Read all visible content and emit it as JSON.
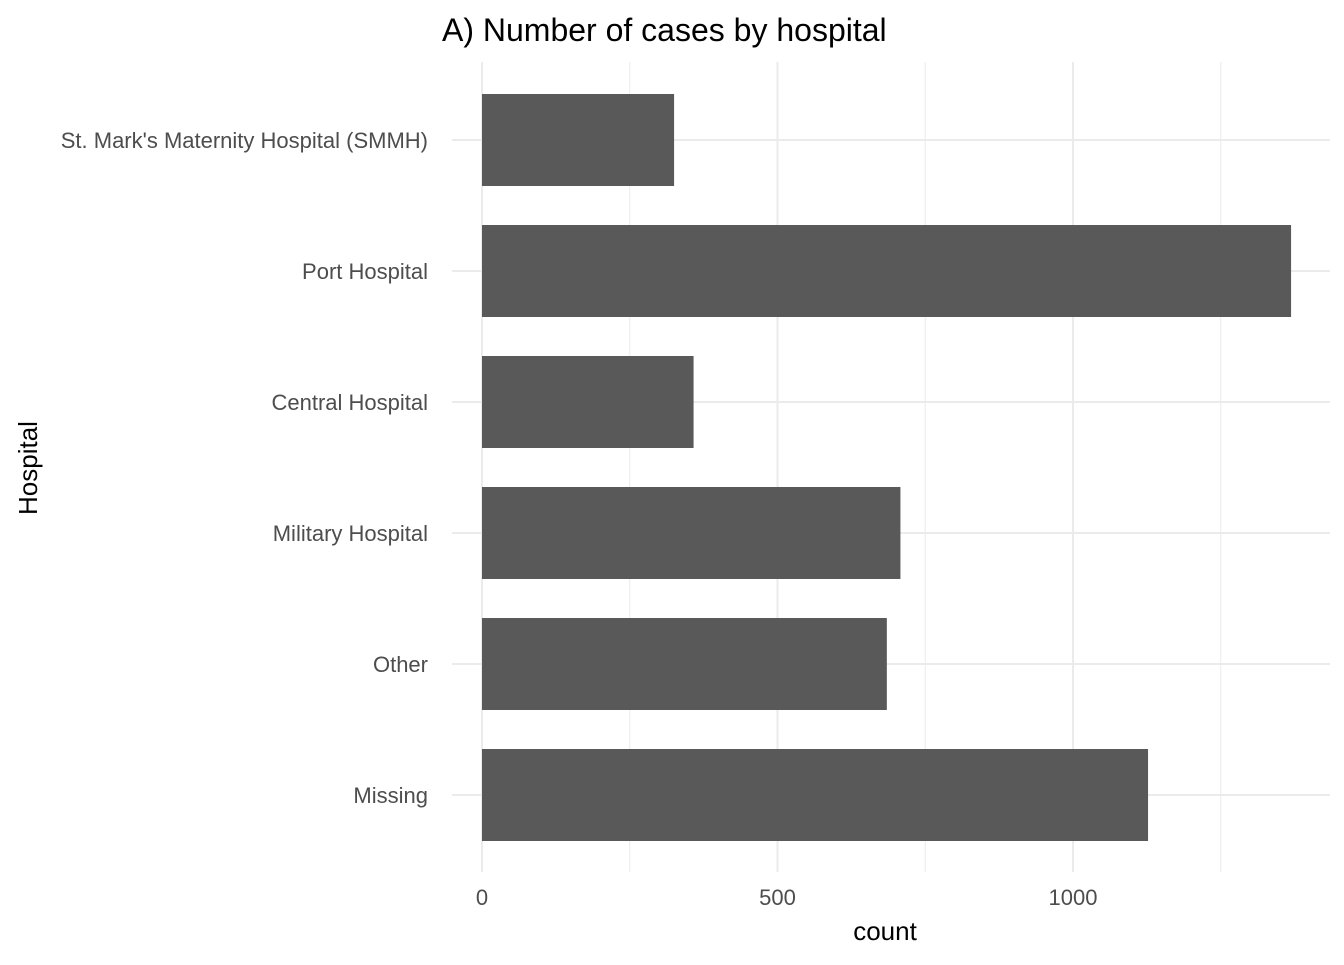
{
  "chart_data": {
    "type": "bar",
    "orientation": "horizontal",
    "title": "A) Number of cases by hospital",
    "xlabel": "count",
    "ylabel": "Hospital",
    "categories": [
      "St. Mark's Maternity Hospital (SMMH)",
      "Port Hospital",
      "Central Hospital",
      "Military Hospital",
      "Other",
      "Missing"
    ],
    "values": [
      325,
      1369,
      358,
      708,
      685,
      1127
    ],
    "xlim": [
      0,
      1440
    ],
    "x_ticks": [
      0,
      500,
      1000
    ],
    "x_tick_labels": [
      "0",
      "500",
      "1000"
    ],
    "grid": true,
    "legend": "none",
    "bar_color": "#595959",
    "grid_color": "#ebebeb"
  }
}
